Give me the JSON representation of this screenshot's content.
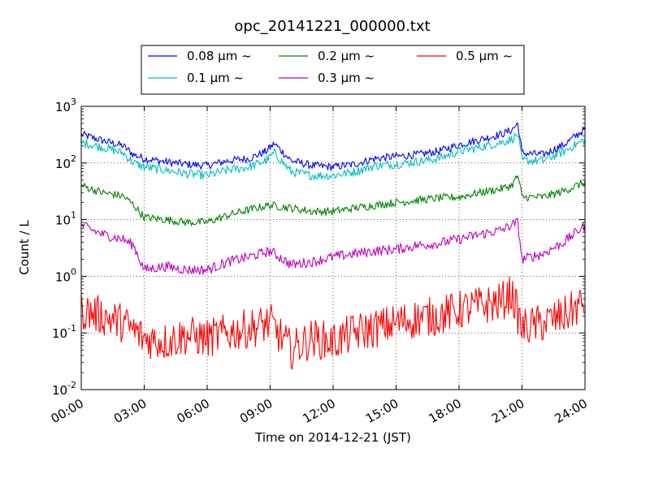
{
  "chart_data": {
    "type": "line",
    "title": "opc_20141221_000000.txt",
    "xlabel": "Time on 2014-12-21 (JST)",
    "ylabel": "Count / L",
    "x_unit": "hours",
    "xlim": [
      0,
      24
    ],
    "ylim": [
      0.01,
      1000
    ],
    "y_scale": "log",
    "grid": true,
    "x_ticks": [
      0,
      3,
      6,
      9,
      12,
      15,
      18,
      21,
      24
    ],
    "x_tick_labels": [
      "00:00",
      "03:00",
      "06:00",
      "09:00",
      "12:00",
      "15:00",
      "18:00",
      "21:00",
      "24:00"
    ],
    "y_ticks": [
      0.01,
      0.1,
      1,
      10,
      100,
      1000
    ],
    "y_tick_labels": [
      {
        "base": "10",
        "exp": "-2"
      },
      {
        "base": "10",
        "exp": "-1"
      },
      {
        "base": "10",
        "exp": "0"
      },
      {
        "base": "10",
        "exp": "1"
      },
      {
        "base": "10",
        "exp": "2"
      },
      {
        "base": "10",
        "exp": "3"
      }
    ],
    "legend": {
      "placement": "top-center",
      "entries": [
        {
          "label": "0.08 μm ~",
          "color": "#0000ff"
        },
        {
          "label": "0.1 μm ~",
          "color": "#00bfbf"
        },
        {
          "label": "0.2 μm ~",
          "color": "#008000"
        },
        {
          "label": "0.3 μm ~",
          "color": "#bf00bf"
        },
        {
          "label": "0.5 μm ~",
          "color": "#ff0000"
        }
      ]
    },
    "series": [
      {
        "color": "#0000ff",
        "x": [
          0,
          1,
          2,
          2.5,
          3,
          4,
          5,
          6,
          7,
          8,
          8.8,
          9.2,
          10,
          11,
          12,
          13,
          14,
          15,
          16,
          17,
          18,
          19,
          20,
          20.5,
          20.8,
          21,
          22,
          23,
          24
        ],
        "y": [
          320,
          250,
          200,
          140,
          120,
          105,
          95,
          90,
          110,
          120,
          160,
          220,
          110,
          90,
          85,
          95,
          120,
          130,
          140,
          160,
          210,
          260,
          320,
          380,
          500,
          150,
          140,
          210,
          400
        ]
      },
      {
        "color": "#00bfbf",
        "x": [
          0,
          1,
          2,
          2.5,
          3,
          4,
          5,
          6,
          7,
          8,
          8.8,
          9.2,
          10,
          11,
          12,
          13,
          14,
          15,
          16,
          17,
          18,
          19,
          20,
          20.5,
          20.8,
          21,
          22,
          23,
          24
        ],
        "y": [
          230,
          190,
          150,
          100,
          85,
          75,
          65,
          60,
          75,
          85,
          110,
          150,
          70,
          60,
          60,
          70,
          90,
          95,
          105,
          120,
          160,
          190,
          230,
          260,
          320,
          110,
          110,
          160,
          260
        ]
      },
      {
        "color": "#008000",
        "x": [
          0,
          1,
          2,
          2.5,
          3,
          4,
          5,
          6,
          7,
          8,
          9,
          10,
          11,
          12,
          13,
          14,
          15,
          16,
          17,
          18,
          19,
          20,
          20.5,
          20.8,
          21,
          22,
          23,
          24
        ],
        "y": [
          40,
          30,
          26,
          18,
          11,
          10,
          9,
          9,
          12,
          15,
          18,
          16,
          14,
          14,
          16,
          18,
          20,
          22,
          24,
          25,
          30,
          35,
          40,
          60,
          25,
          25,
          32,
          46
        ]
      },
      {
        "color": "#bf00bf",
        "x": [
          0,
          1,
          2,
          2.5,
          3,
          4,
          5,
          6,
          7,
          8,
          9,
          10,
          11,
          12,
          13,
          14,
          15,
          16,
          17,
          18,
          19,
          20,
          20.5,
          20.8,
          21,
          22,
          23,
          24
        ],
        "y": [
          8,
          5.5,
          4.5,
          3.5,
          1.3,
          1.5,
          1.3,
          1.3,
          1.8,
          2.2,
          2.8,
          1.6,
          1.8,
          2.2,
          2.5,
          2.8,
          3,
          3.5,
          3.8,
          4.5,
          5.5,
          6.5,
          8,
          9,
          2,
          2.5,
          4,
          8
        ]
      },
      {
        "color": "#ff0000",
        "x": [
          0,
          1,
          2,
          3,
          4,
          5,
          6,
          7,
          8,
          9,
          10,
          11,
          12,
          13,
          14,
          15,
          16,
          17,
          18,
          19,
          20,
          20.5,
          21,
          22,
          23,
          24
        ],
        "y": [
          0.25,
          0.2,
          0.15,
          0.08,
          0.07,
          0.09,
          0.08,
          0.1,
          0.12,
          0.15,
          0.05,
          0.08,
          0.07,
          0.1,
          0.12,
          0.15,
          0.18,
          0.2,
          0.25,
          0.3,
          0.35,
          0.5,
          0.12,
          0.15,
          0.2,
          0.35
        ]
      }
    ]
  }
}
